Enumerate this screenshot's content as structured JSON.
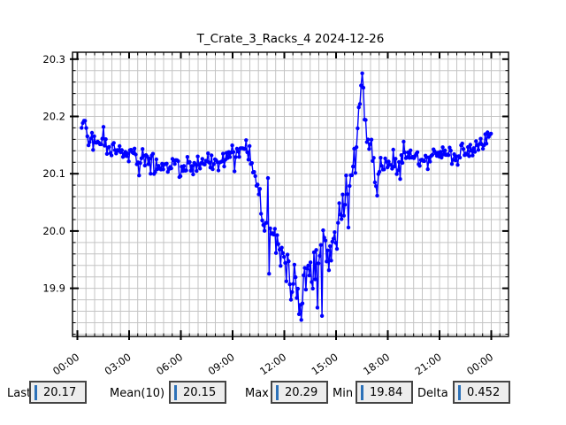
{
  "window": {
    "background": "#ffffff"
  },
  "chart_data": {
    "type": "line",
    "title": "T_Crate_3_Racks_4 2024-12-26",
    "background": "#ffffff",
    "border_color": "#000000",
    "grid": {
      "visible": true,
      "color": "#c4c4c4"
    },
    "x_axis": {
      "range_hours": [
        -0.28,
        25.0
      ],
      "major_ticks_hours": [
        0,
        3,
        6,
        9,
        12,
        15,
        18,
        21,
        24
      ],
      "tick_labels": [
        "00:00",
        "03:00",
        "06:00",
        "09:00",
        "12:00",
        "15:00",
        "18:00",
        "21:00",
        "00:00"
      ],
      "minor_step_hours": 0.5,
      "label_rotation_deg": -35
    },
    "y_axis": {
      "range": [
        19.816,
        20.312
      ],
      "major_ticks": [
        19.9,
        20.0,
        20.1,
        20.2,
        20.3
      ],
      "tick_labels": [
        "19.9",
        "20.0",
        "20.1",
        "20.2",
        "20.3"
      ],
      "minor_step": 0.02
    },
    "series": [
      {
        "name": "T_Crate_3_Racks_4",
        "color": "#0000ff",
        "style": "linespoints",
        "marker": "filled-circle",
        "start_hour": 0.25,
        "end_hour": 24.0,
        "samples_per_hour": 15,
        "value_clamp": [
          19.838,
          20.291
        ],
        "trend_keypoints": [
          [
            0.25,
            20.18
          ],
          [
            0.4,
            20.19
          ],
          [
            0.7,
            20.16
          ],
          [
            1.2,
            20.16
          ],
          [
            1.8,
            20.15
          ],
          [
            2.4,
            20.14
          ],
          [
            3.0,
            20.14
          ],
          [
            3.6,
            20.13
          ],
          [
            4.2,
            20.12
          ],
          [
            4.8,
            20.12
          ],
          [
            5.4,
            20.11
          ],
          [
            6.0,
            20.11
          ],
          [
            6.6,
            20.11
          ],
          [
            7.2,
            20.12
          ],
          [
            7.8,
            20.12
          ],
          [
            8.4,
            20.12
          ],
          [
            9.0,
            20.13
          ],
          [
            9.5,
            20.14
          ],
          [
            9.8,
            20.16
          ],
          [
            10.1,
            20.12
          ],
          [
            10.4,
            20.07
          ],
          [
            10.8,
            20.03
          ],
          [
            11.2,
            20.0
          ],
          [
            11.6,
            19.98
          ],
          [
            12.0,
            19.96
          ],
          [
            12.3,
            19.93
          ],
          [
            12.6,
            19.9
          ],
          [
            12.75,
            19.89
          ],
          [
            12.9,
            19.84
          ],
          [
            13.05,
            19.9
          ],
          [
            13.3,
            19.92
          ],
          [
            13.6,
            19.91
          ],
          [
            13.9,
            19.94
          ],
          [
            14.2,
            19.96
          ],
          [
            14.5,
            19.95
          ],
          [
            14.8,
            19.98
          ],
          [
            15.1,
            20.01
          ],
          [
            15.4,
            20.04
          ],
          [
            15.7,
            20.07
          ],
          [
            15.95,
            20.1
          ],
          [
            16.15,
            20.14
          ],
          [
            16.35,
            20.2
          ],
          [
            16.5,
            20.29
          ],
          [
            16.65,
            20.21
          ],
          [
            16.8,
            20.16
          ],
          [
            17.0,
            20.14
          ],
          [
            17.2,
            20.12
          ],
          [
            17.35,
            20.06
          ],
          [
            17.5,
            20.11
          ],
          [
            17.8,
            20.12
          ],
          [
            18.2,
            20.11
          ],
          [
            18.6,
            20.12
          ],
          [
            19.0,
            20.13
          ],
          [
            19.5,
            20.13
          ],
          [
            20.0,
            20.12
          ],
          [
            20.5,
            20.13
          ],
          [
            21.0,
            20.14
          ],
          [
            21.5,
            20.13
          ],
          [
            22.0,
            20.13
          ],
          [
            22.5,
            20.14
          ],
          [
            23.0,
            20.14
          ],
          [
            23.4,
            20.15
          ],
          [
            23.7,
            20.16
          ],
          [
            24.0,
            20.17
          ]
        ],
        "noise_amplitude_keypoints": [
          [
            0,
            0.016
          ],
          [
            6,
            0.014
          ],
          [
            9.5,
            0.013
          ],
          [
            10.3,
            0.018
          ],
          [
            11.5,
            0.025
          ],
          [
            12.5,
            0.03
          ],
          [
            13.5,
            0.035
          ],
          [
            14.5,
            0.038
          ],
          [
            15.5,
            0.032
          ],
          [
            16.1,
            0.016
          ],
          [
            16.55,
            0.01
          ],
          [
            16.9,
            0.018
          ],
          [
            17.6,
            0.013
          ],
          [
            19,
            0.013
          ],
          [
            21,
            0.014
          ],
          [
            23,
            0.013
          ],
          [
            24,
            0.012
          ]
        ],
        "first_value": 20.18,
        "last_value": 20.17
      }
    ]
  },
  "readouts": {
    "entry_bg": "#ededed",
    "entry_border": "#444444",
    "cursor_color": "#2c71b8",
    "fields": [
      {
        "label": "Last",
        "value": "20.17"
      },
      {
        "label": "Mean(10)",
        "value": "20.15"
      },
      {
        "label": "Max",
        "value": "20.29"
      },
      {
        "label": "Min",
        "value": "19.84"
      },
      {
        "label": "Delta",
        "value": "0.452"
      }
    ]
  }
}
